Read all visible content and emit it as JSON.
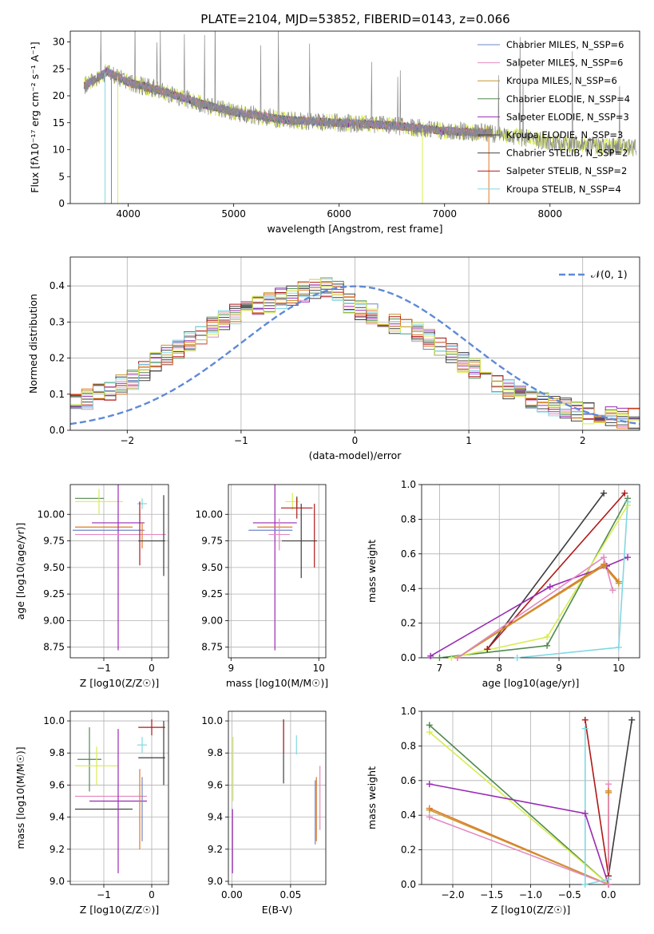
{
  "figure_title": "PLATE=2104, MJD=53852, FIBERID=0143, z=0.066",
  "palette": [
    "#6f86c8",
    "#e48ac0",
    "#c8962e",
    "#4e8a4e",
    "#9a2ab4",
    "#3c3c3c",
    "#444444",
    "#b01818",
    "#80d8e0",
    "#e07828",
    "#d8ec50"
  ],
  "chart_data": [
    {
      "id": "spectrum",
      "type": "line",
      "title": "PLATE=2104, MJD=53852, FIBERID=0143, z=0.066",
      "xlabel": "wavelength [Angstrom, rest frame]",
      "ylabel": "Flux [fλ10⁻¹⁷ erg cm⁻² s⁻¹ A⁻¹]",
      "xlim": [
        3450,
        8850
      ],
      "ylim": [
        0,
        32
      ],
      "xticks": [
        4000,
        5000,
        6000,
        7000,
        8000
      ],
      "xtick_labels": [
        "4000",
        "5000",
        "6000",
        "7000",
        "8000"
      ],
      "yticks": [
        0,
        5,
        10,
        15,
        20,
        25,
        30
      ],
      "ytick_labels": [
        "0",
        "5",
        "10",
        "15",
        "20",
        "25",
        "30"
      ],
      "grid": false,
      "legend_position": "right",
      "continuum_x": [
        3600,
        3800,
        4000,
        4300,
        4700,
        5000,
        5500,
        6000,
        6500,
        7000,
        7500,
        8000,
        8500
      ],
      "continuum_y": [
        22,
        24.5,
        22.5,
        21,
        18.5,
        17,
        15.5,
        15,
        14.5,
        13.5,
        13,
        11.5,
        10.5
      ],
      "series": [
        {
          "name": "Chabrier MILES, N_SSP=6",
          "color": "#6f86c8"
        },
        {
          "name": "Salpeter MILES, N_SSP=6",
          "color": "#e48ac0"
        },
        {
          "name": "Kroupa MILES, N_SSP=6",
          "color": "#c8962e"
        },
        {
          "name": "Chabrier ELODIE, N_SSP=4",
          "color": "#4e8a4e"
        },
        {
          "name": "Salpeter ELODIE, N_SSP=3",
          "color": "#9a2ab4"
        },
        {
          "name": "Kroupa ELODIE, N_SSP=3",
          "color": "#3c3c3c"
        },
        {
          "name": "Chabrier STELIB, N_SSP=2",
          "color": "#444444"
        },
        {
          "name": "Salpeter STELIB, N_SSP=2",
          "color": "#b01818"
        },
        {
          "name": "Kroupa STELIB, N_SSP=4",
          "color": "#80d8e0"
        }
      ]
    },
    {
      "id": "residuals",
      "type": "line",
      "xlabel": "(data-model)/error",
      "ylabel": "Normed distribution",
      "xlim": [
        -2.5,
        2.5
      ],
      "ylim": [
        0,
        0.48
      ],
      "xticks": [
        -2,
        -1,
        0,
        1,
        2
      ],
      "xtick_labels": [
        "−2",
        "−1",
        "0",
        "1",
        "2"
      ],
      "yticks": [
        0,
        0.1,
        0.2,
        0.3,
        0.4
      ],
      "ytick_labels": [
        "0.0",
        "0.1",
        "0.2",
        "0.3",
        "0.4"
      ],
      "grid": true,
      "legend_position": "top-right",
      "gaussian_label": "𝒩(0, 1)",
      "gaussian_color": "#5f8ad6",
      "bin_width": 0.1,
      "histogram_shape_x": [
        -2.5,
        -2.0,
        -1.5,
        -1.0,
        -0.5,
        -0.2,
        0.0,
        0.5,
        1.0,
        1.5,
        2.0,
        2.5
      ],
      "histogram_shape_y": [
        0.07,
        0.13,
        0.24,
        0.33,
        0.38,
        0.4,
        0.34,
        0.28,
        0.18,
        0.09,
        0.05,
        0.03
      ]
    },
    {
      "id": "age_vs_Z",
      "type": "scatter",
      "xlabel": "Z [log10(Z/Z☉)]",
      "ylabel": "age  [log10(age/yr)]",
      "xlim": [
        -1.7,
        0.35
      ],
      "ylim": [
        8.65,
        10.28
      ],
      "xticks": [
        -1,
        0
      ],
      "xtick_labels": [
        "−1",
        "0"
      ],
      "yticks": [
        8.75,
        9.0,
        9.25,
        9.5,
        9.75,
        10.0
      ],
      "ytick_labels": [
        "8.75",
        "9.00",
        "9.25",
        "9.50",
        "9.75",
        "10.00"
      ],
      "grid": true,
      "errorbars": [
        {
          "x": -1.3,
          "xerr": 0.3,
          "y": 10.15,
          "yerr": 0.0,
          "color": "#4e8a4e"
        },
        {
          "x": -1.1,
          "xerr": 0.5,
          "y": 10.12,
          "yerr": 0.12,
          "color": "#d8ec50"
        },
        {
          "x": -1.0,
          "xerr": 0.6,
          "y": 9.88,
          "yerr": 0.0,
          "color": "#e07828"
        },
        {
          "x": -0.9,
          "xerr": 0.75,
          "y": 9.85,
          "yerr": 0.0,
          "color": "#6f86c8"
        },
        {
          "x": -0.7,
          "xerr": 0.55,
          "y": 9.92,
          "yerr": 1.2,
          "color": "#9a2ab4"
        },
        {
          "x": -0.65,
          "xerr": 0.95,
          "y": 9.81,
          "yerr": 0.0,
          "color": "#e48ac0"
        },
        {
          "x": -0.2,
          "xerr": 0.1,
          "y": 10.1,
          "yerr": 0.05,
          "color": "#80d8e0"
        },
        {
          "x": -0.25,
          "xerr": 0.0,
          "y": 9.82,
          "yerr": 0.3,
          "color": "#b01818"
        },
        {
          "x": -0.2,
          "xerr": 0.0,
          "y": 9.8,
          "yerr": 0.12,
          "color": "#e07828"
        },
        {
          "x": 0.0,
          "xerr": 0.28,
          "y": 9.75,
          "yerr": 0.0,
          "color": "#3c3c3c"
        },
        {
          "x": 0.25,
          "xerr": 0.0,
          "y": 9.8,
          "yerr": 0.38,
          "color": "#3c3c3c"
        }
      ]
    },
    {
      "id": "age_vs_mass",
      "type": "scatter",
      "xlabel": "mass [log10(M/M☉)]",
      "ylabel": "",
      "xlim": [
        8.97,
        10.08
      ],
      "ylim": [
        8.65,
        10.28
      ],
      "xticks": [
        9,
        10
      ],
      "xtick_labels": [
        "9",
        "10"
      ],
      "yticks": [
        8.75,
        9.0,
        9.25,
        9.5,
        9.75,
        10.0
      ],
      "ytick_labels": [
        "8.75",
        "9.00",
        "9.25",
        "9.50",
        "9.75",
        "10.00"
      ],
      "grid": true,
      "errorbars": [
        {
          "x": 9.75,
          "xerr": 0.0,
          "y": 10.12,
          "yerr": 0.05,
          "color": "#4e8a4e"
        },
        {
          "x": 9.7,
          "xerr": 0.08,
          "y": 10.12,
          "yerr": 0.08,
          "color": "#d8ec50"
        },
        {
          "x": 9.5,
          "xerr": 0.25,
          "y": 9.92,
          "yerr": 1.2,
          "color": "#9a2ab4"
        },
        {
          "x": 9.5,
          "xerr": 0.2,
          "y": 9.88,
          "yerr": 0.0,
          "color": "#e07828"
        },
        {
          "x": 9.45,
          "xerr": 0.25,
          "y": 9.85,
          "yerr": 0.0,
          "color": "#6f86c8"
        },
        {
          "x": 9.55,
          "xerr": 0.12,
          "y": 9.81,
          "yerr": 0.15,
          "color": "#e48ac0"
        },
        {
          "x": 9.75,
          "xerr": 0.18,
          "y": 10.06,
          "yerr": 0.1,
          "color": "#b01818"
        },
        {
          "x": 9.95,
          "xerr": 0.0,
          "y": 9.8,
          "yerr": 0.3,
          "color": "#b01818"
        },
        {
          "x": 9.8,
          "xerr": 0.0,
          "y": 9.75,
          "yerr": 0.35,
          "color": "#3c3c3c"
        },
        {
          "x": 9.78,
          "xerr": 0.2,
          "y": 9.75,
          "yerr": 0.0,
          "color": "#3c3c3c"
        }
      ]
    },
    {
      "id": "weight_vs_age",
      "type": "line",
      "xlabel": "age  [log10(age/yr)]",
      "ylabel": "mass weight",
      "xlim": [
        6.7,
        10.35
      ],
      "ylim": [
        0,
        1.0
      ],
      "xticks": [
        7,
        8,
        9,
        10
      ],
      "xtick_labels": [
        "7",
        "8",
        "9",
        "10"
      ],
      "yticks": [
        0,
        0.2,
        0.4,
        0.6,
        0.8,
        1.0
      ],
      "ytick_labels": [
        "0.0",
        "0.2",
        "0.4",
        "0.6",
        "0.8",
        "1.0"
      ],
      "grid": true,
      "series": [
        {
          "color": "#3c3c3c",
          "x": [
            7.8,
            9.75
          ],
          "y": [
            0.05,
            0.95
          ]
        },
        {
          "color": "#b01818",
          "x": [
            7.8,
            10.1
          ],
          "y": [
            0.05,
            0.95
          ]
        },
        {
          "color": "#4e8a4e",
          "x": [
            7.0,
            8.8,
            10.15
          ],
          "y": [
            0.0,
            0.07,
            0.92
          ]
        },
        {
          "color": "#d8ec50",
          "x": [
            7.2,
            8.8,
            10.15
          ],
          "y": [
            0.0,
            0.12,
            0.88
          ]
        },
        {
          "color": "#9a2ab4",
          "x": [
            6.85,
            8.85,
            9.8,
            10.15
          ],
          "y": [
            0.01,
            0.41,
            0.53,
            0.58
          ]
        },
        {
          "color": "#e07828",
          "x": [
            7.3,
            9.75,
            10.0
          ],
          "y": [
            0.0,
            0.54,
            0.44
          ]
        },
        {
          "color": "#c8962e",
          "x": [
            7.3,
            9.75,
            10.0
          ],
          "y": [
            0.0,
            0.53,
            0.43
          ]
        },
        {
          "color": "#e48ac0",
          "x": [
            7.3,
            9.75,
            9.9
          ],
          "y": [
            0.0,
            0.58,
            0.39
          ]
        },
        {
          "color": "#80d8e0",
          "x": [
            8.3,
            10.0,
            10.15
          ],
          "y": [
            0.0,
            0.06,
            0.9
          ]
        }
      ]
    },
    {
      "id": "mass_vs_Z",
      "type": "scatter",
      "xlabel": "Z [log10(Z/Z☉)]",
      "ylabel": "mass [log10(M/M☉)]",
      "xlim": [
        -1.7,
        0.35
      ],
      "ylim": [
        8.98,
        10.06
      ],
      "xticks": [
        -1,
        0
      ],
      "xtick_labels": [
        "−1",
        "0"
      ],
      "yticks": [
        9.0,
        9.2,
        9.4,
        9.6,
        9.8,
        10.0
      ],
      "ytick_labels": [
        "9.0",
        "9.2",
        "9.4",
        "9.6",
        "9.8",
        "10.0"
      ],
      "grid": true,
      "errorbars": [
        {
          "x": -1.3,
          "xerr": 0.25,
          "y": 9.76,
          "yerr": 0.2,
          "color": "#4e8a4e"
        },
        {
          "x": -1.15,
          "xerr": 0.45,
          "y": 9.72,
          "yerr": 0.12,
          "color": "#d8ec50"
        },
        {
          "x": -1.05,
          "xerr": 0.55,
          "y": 9.45,
          "yerr": 0.0,
          "color": "#e07828"
        },
        {
          "x": -1.0,
          "xerr": 0.6,
          "y": 9.45,
          "yerr": 0.0,
          "color": "#3c3c3c"
        },
        {
          "x": -0.85,
          "xerr": 0.75,
          "y": 9.53,
          "yerr": 0.0,
          "color": "#e48ac0"
        },
        {
          "x": -0.7,
          "xerr": 0.6,
          "y": 9.5,
          "yerr": 0.45,
          "color": "#9a2ab4"
        },
        {
          "x": -0.25,
          "xerr": 0.0,
          "y": 9.45,
          "yerr": 0.25,
          "color": "#e07828"
        },
        {
          "x": -0.2,
          "xerr": 0.0,
          "y": 9.45,
          "yerr": 0.2,
          "color": "#6f86c8"
        },
        {
          "x": -0.2,
          "xerr": 0.1,
          "y": 9.85,
          "yerr": 0.05,
          "color": "#80d8e0"
        },
        {
          "x": 0.0,
          "xerr": 0.28,
          "y": 9.96,
          "yerr": 0.05,
          "color": "#b01818"
        },
        {
          "x": 0.0,
          "xerr": 0.28,
          "y": 9.77,
          "yerr": 0.0,
          "color": "#3c3c3c"
        },
        {
          "x": 0.25,
          "xerr": 0.0,
          "y": 9.8,
          "yerr": 0.2,
          "color": "#3c3c3c"
        }
      ]
    },
    {
      "id": "mass_vs_ebv",
      "type": "scatter",
      "xlabel": "E(B-V)",
      "ylabel": "",
      "xlim": [
        -0.003,
        0.08
      ],
      "ylim": [
        8.98,
        10.06
      ],
      "xticks": [
        0.0,
        0.05
      ],
      "xtick_labels": [
        "0.00",
        "0.05"
      ],
      "yticks": [
        9.0,
        9.2,
        9.4,
        9.6,
        9.8,
        10.0
      ],
      "ytick_labels": [
        "9.0",
        "9.2",
        "9.4",
        "9.6",
        "9.8",
        "10.0"
      ],
      "grid": true,
      "errorbars": [
        {
          "x": 0.001,
          "xerr": 0.0,
          "y": 9.7,
          "yerr": 0.2,
          "color": "#d8ec50"
        },
        {
          "x": 0.0005,
          "xerr": 0.0,
          "y": 9.25,
          "yerr": 0.2,
          "color": "#9a2ab4"
        },
        {
          "x": 0.044,
          "xerr": 0.0,
          "y": 9.81,
          "yerr": 0.2,
          "color": "#3c3c3c"
        },
        {
          "x": 0.044,
          "xerr": 0.0,
          "y": 9.9,
          "yerr": 0.1,
          "color": "#b01818"
        },
        {
          "x": 0.055,
          "xerr": 0.0,
          "y": 9.85,
          "yerr": 0.06,
          "color": "#80d8e0"
        },
        {
          "x": 0.072,
          "xerr": 0.0,
          "y": 9.45,
          "yerr": 0.2,
          "color": "#e07828"
        },
        {
          "x": 0.071,
          "xerr": 0.0,
          "y": 9.43,
          "yerr": 0.2,
          "color": "#6f86c8"
        },
        {
          "x": 0.075,
          "xerr": 0.0,
          "y": 9.52,
          "yerr": 0.2,
          "color": "#e48ac0"
        }
      ]
    },
    {
      "id": "weight_vs_Z",
      "type": "line",
      "xlabel": "Z [log10(Z/Z☉)]",
      "ylabel": "mass weight",
      "xlim": [
        -2.4,
        0.4
      ],
      "ylim": [
        0,
        1.0
      ],
      "xticks": [
        -2.0,
        -1.5,
        -1.0,
        -0.5,
        0.0
      ],
      "xtick_labels": [
        "−2.0",
        "−1.5",
        "−1.0",
        "−0.5",
        "0.0"
      ],
      "yticks": [
        0,
        0.2,
        0.4,
        0.6,
        0.8,
        1.0
      ],
      "ytick_labels": [
        "0.0",
        "0.2",
        "0.4",
        "0.6",
        "0.8",
        "1.0"
      ],
      "grid": true,
      "series": [
        {
          "color": "#3c3c3c",
          "x": [
            0.0,
            0.3
          ],
          "y": [
            0.05,
            0.95
          ]
        },
        {
          "color": "#b01818",
          "x": [
            -0.3,
            0.0
          ],
          "y": [
            0.95,
            0.05
          ]
        },
        {
          "color": "#4e8a4e",
          "x": [
            -2.3,
            0.0
          ],
          "y": [
            0.92,
            0.0
          ]
        },
        {
          "color": "#d8ec50",
          "x": [
            -2.3,
            0.0
          ],
          "y": [
            0.88,
            0.0
          ]
        },
        {
          "color": "#9a2ab4",
          "x": [
            -2.3,
            -0.3,
            0.0
          ],
          "y": [
            0.58,
            0.41,
            0.0
          ]
        },
        {
          "color": "#e07828",
          "x": [
            -2.3,
            0.0,
            0.0
          ],
          "y": [
            0.44,
            0.0,
            0.54
          ]
        },
        {
          "color": "#c8962e",
          "x": [
            -2.3,
            0.0,
            0.0
          ],
          "y": [
            0.43,
            0.0,
            0.53
          ]
        },
        {
          "color": "#e48ac0",
          "x": [
            -2.3,
            0.0,
            0.0
          ],
          "y": [
            0.39,
            0.0,
            0.58
          ]
        },
        {
          "color": "#80d8e0",
          "x": [
            -0.3,
            -0.3,
            0.0
          ],
          "y": [
            0.9,
            0.0,
            0.03
          ]
        }
      ]
    }
  ]
}
